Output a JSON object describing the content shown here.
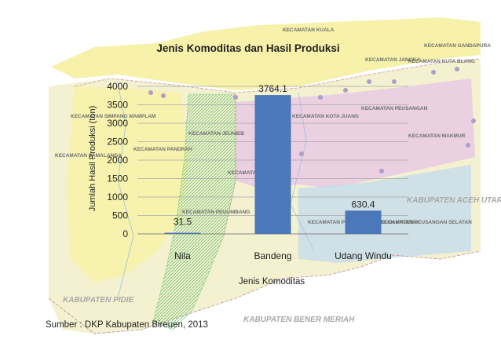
{
  "chart_data": {
    "type": "bar",
    "title": "Jenis Komoditas dan Hasil Produksi",
    "xlabel": "Jenis Komoditas",
    "ylabel": "Jumlah Hasil Produksi (ton)",
    "categories": [
      "Nila",
      "Bandeng",
      "Udang Windu"
    ],
    "values": [
      31.5,
      3764.1,
      630.4
    ],
    "data_labels": [
      "31.5",
      "3764.1",
      "630.4"
    ],
    "ylim": [
      0,
      4000
    ],
    "yticks": [
      0,
      500,
      1000,
      1500,
      2000,
      2500,
      3000,
      3500,
      4000
    ],
    "grid": true,
    "legend": "none",
    "bar_color": "#4a78b8"
  },
  "map_labels": {
    "kab_pidie": "KABUPATEN PIDIE",
    "kab_bener_meriah": "KABUPATEN BENER MERIAH",
    "kab_aceh_utara": "KABUPATEN ACEH UTARA",
    "kec_samalanga": "KECAMATAN SAMALANGA",
    "kec_simpang_mamplam": "KECAMATAN SIMPANG MAMPLAM",
    "kec_pandrah": "KECAMATAN PANDRAH",
    "kec_jeunieb": "KECAMATAN JEUNIEB",
    "kec_peudada": "KECAMATAN PEUDADA",
    "kec_kota_juang": "KECAMATAN KOTA JUANG",
    "kec_kuala": "KECAMATAN KUALA",
    "kec_jangka": "KECAMATAN JANGKA",
    "kec_gandapura": "KECAMATAN GANDAPURA",
    "kec_kuta_blang": "KECAMATAN KUTA BLANG",
    "kec_peusangan": "KECAMATAN PEUSANGAN",
    "kec_makmur": "KECAMATAN MAKMUR",
    "kec_siblah_krueng": "KECAMATAN PEUSANGAN SIBLAH KRUENG",
    "kec_sangan_selatan": "KECAMATAN PEUSANGAN SELATAN",
    "kec_peulimbang": "KECAMATAN PEULIMBANG"
  },
  "source": "Sumber : DKP Kabupaten Bireuen, 2013",
  "colors": {
    "map_bg": "#f3efc8",
    "map_green": "#9bd59a",
    "map_pink": "#e7c8dc",
    "map_blue": "#bcd6e8",
    "map_yellow": "#f6ef9c"
  }
}
